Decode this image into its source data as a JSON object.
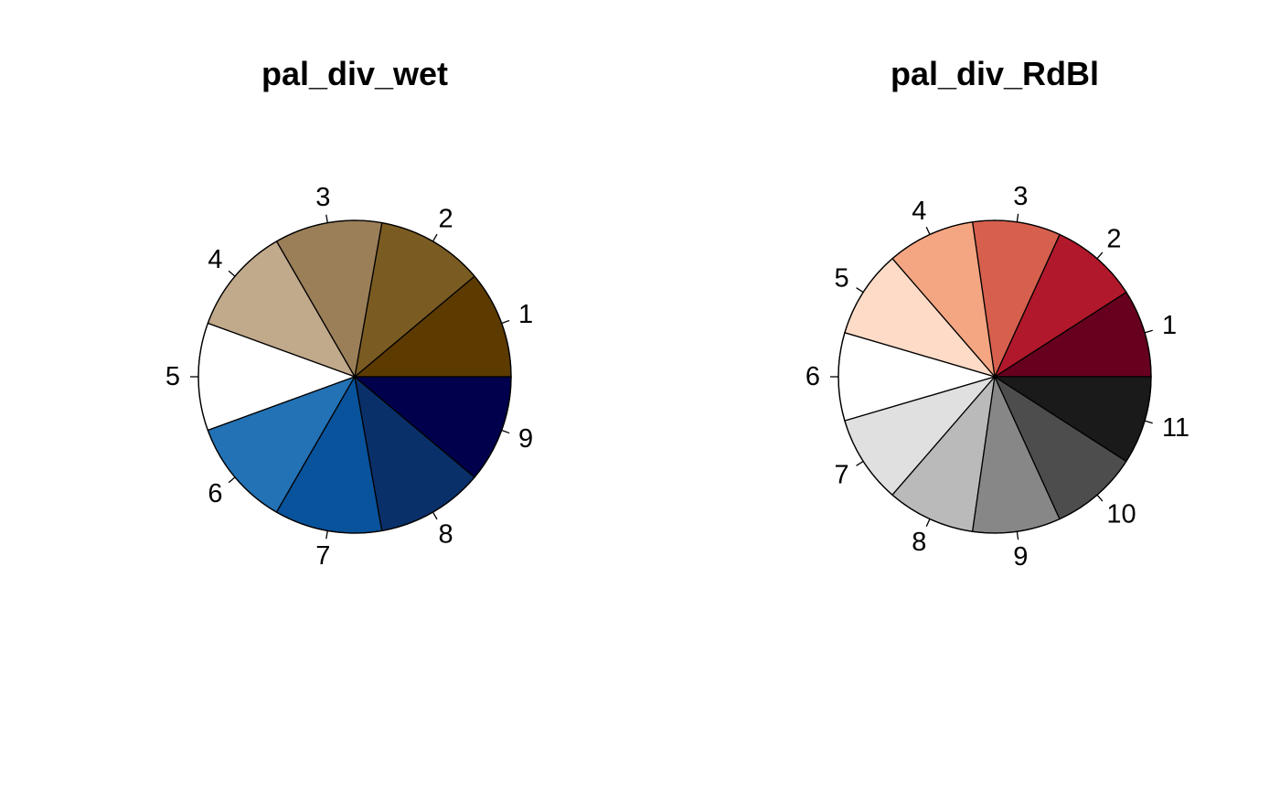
{
  "chart_data": [
    {
      "type": "pie",
      "title": "pal_div_wet",
      "labels": [
        "1",
        "2",
        "3",
        "4",
        "5",
        "6",
        "7",
        "8",
        "9"
      ],
      "values": [
        1,
        1,
        1,
        1,
        1,
        1,
        1,
        1,
        1
      ],
      "colors": [
        "#5C3A00",
        "#7A5B22",
        "#9B7F58",
        "#C1A98B",
        "#FFFFFF",
        "#2272B5",
        "#08539C",
        "#0A306A",
        "#00004D"
      ],
      "start": "east",
      "direction": "counterclockwise"
    },
    {
      "type": "pie",
      "title": "pal_div_RdBl",
      "labels": [
        "1",
        "2",
        "3",
        "4",
        "5",
        "6",
        "7",
        "8",
        "9",
        "10",
        "11"
      ],
      "values": [
        1,
        1,
        1,
        1,
        1,
        1,
        1,
        1,
        1,
        1,
        1
      ],
      "colors": [
        "#67001F",
        "#B2182B",
        "#D6604D",
        "#F4A582",
        "#FDDBC7",
        "#FFFFFF",
        "#E0E0E0",
        "#BABABA",
        "#878787",
        "#4D4D4D",
        "#1A1A1A"
      ],
      "start": "east",
      "direction": "counterclockwise"
    }
  ]
}
